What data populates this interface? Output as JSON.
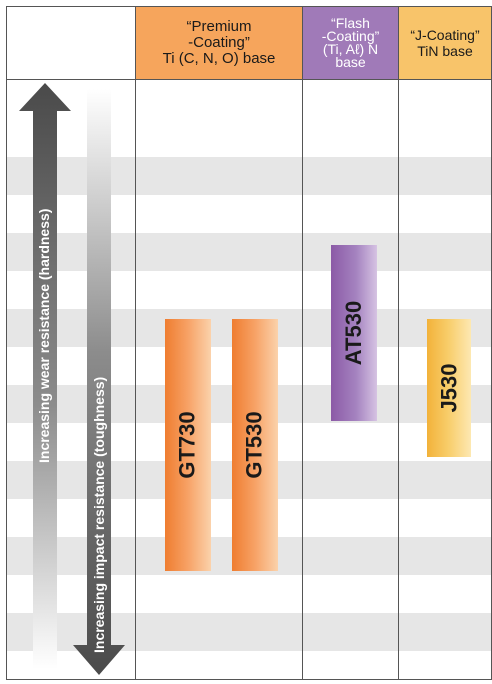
{
  "headers": {
    "premium": [
      "“Premium",
      "-Coating”",
      "Ti (C, N, O) base"
    ],
    "flash": [
      "“Flash",
      "-Coating”",
      "(Ti, Aℓ) N",
      "base"
    ],
    "j": [
      "“J-Coating”",
      "TiN base"
    ]
  },
  "axes": {
    "hardness": "Increasing wear resistance (hardness)",
    "toughness": "Increasing impact resistance (toughness)"
  },
  "grades": {
    "gt730": "GT730",
    "gt530": "GT530",
    "at530": "AT530",
    "j530": "J530"
  },
  "colors": {
    "premium": "#f6a55c",
    "flash": "#a07ab8",
    "j_coating": "#f8c46a",
    "arrow": "#555555"
  }
}
